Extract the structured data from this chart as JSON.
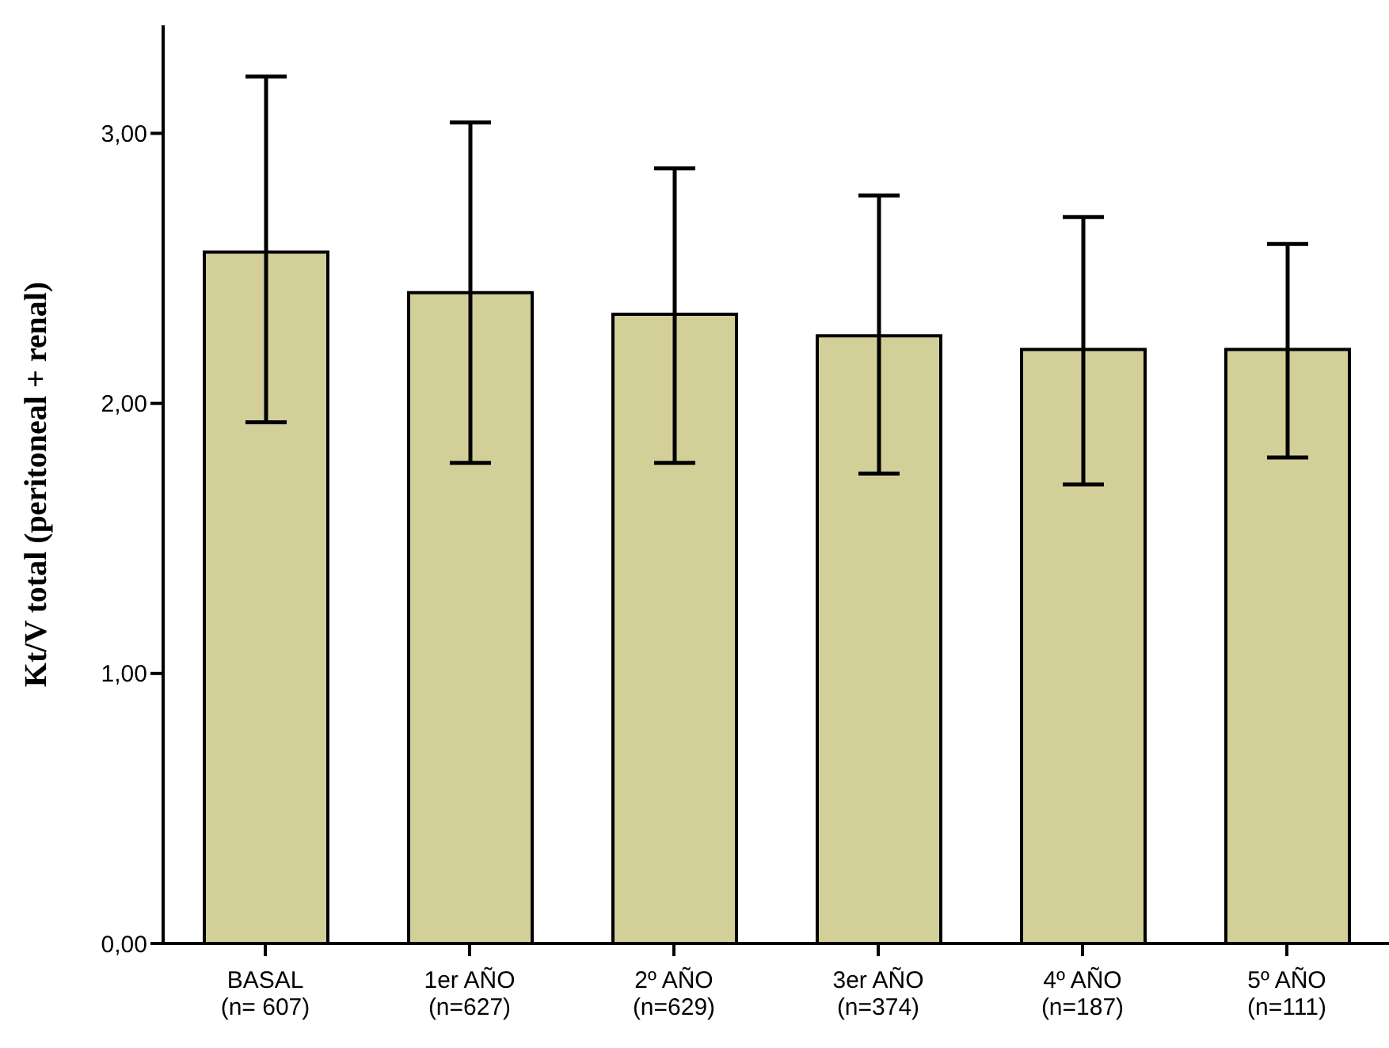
{
  "chart_data": {
    "type": "bar",
    "ylabel": "Kt/V total (peritoneal + renal)",
    "categories": [
      "BASAL\n(n= 607)",
      "1er AÑO\n(n=627)",
      "2º AÑO\n(n=629)",
      "3er AÑO\n(n=374)",
      "4º AÑO\n(n=187)",
      "5º AÑO\n(n=111)"
    ],
    "values": [
      2.56,
      2.41,
      2.33,
      2.25,
      2.2,
      2.2
    ],
    "errors": [
      [
        1.93,
        3.21
      ],
      [
        1.78,
        3.04
      ],
      [
        1.78,
        2.87
      ],
      [
        1.74,
        2.77
      ],
      [
        1.7,
        2.69
      ],
      [
        1.8,
        2.59
      ]
    ],
    "color": "#d3cf98",
    "ylim": [
      0,
      3.4
    ],
    "yticks": [
      {
        "value": 0,
        "label": "0,00"
      },
      {
        "value": 1,
        "label": "1,00"
      },
      {
        "value": 2,
        "label": "2,00"
      },
      {
        "value": 3,
        "label": "3,00"
      }
    ],
    "grid": false,
    "legend": false
  }
}
